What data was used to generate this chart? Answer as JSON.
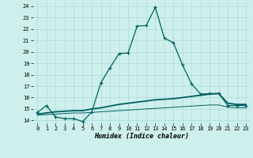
{
  "xlabel": "Humidex (Indice chaleur)",
  "background_color": "#cef0ec",
  "grid_color": "#aadadd",
  "line_color": "#006060",
  "xlim": [
    -0.5,
    23.5
  ],
  "ylim": [
    13.75,
    24.4
  ],
  "yticks": [
    14,
    15,
    16,
    17,
    18,
    19,
    20,
    21,
    22,
    23,
    24
  ],
  "xticks": [
    0,
    1,
    2,
    3,
    4,
    5,
    6,
    7,
    8,
    9,
    10,
    11,
    12,
    13,
    14,
    15,
    16,
    17,
    18,
    19,
    20,
    21,
    22,
    23
  ],
  "xtick_labels": [
    "0",
    "1",
    "2",
    "3",
    "4",
    "5",
    "6",
    "7",
    "8",
    "9",
    "10",
    "11",
    "12",
    "13",
    "14",
    "15",
    "16",
    "17",
    "18",
    "19",
    "20",
    "21",
    "22",
    "23"
  ],
  "series1_x": [
    0,
    1,
    2,
    3,
    4,
    5,
    6,
    7,
    8,
    9,
    10,
    11,
    12,
    13,
    14,
    15,
    16,
    17,
    18,
    19,
    20,
    21,
    22,
    23
  ],
  "series1_y": [
    14.7,
    15.3,
    14.3,
    14.15,
    14.15,
    13.9,
    14.75,
    17.3,
    18.6,
    19.85,
    19.9,
    22.25,
    22.3,
    23.9,
    21.2,
    20.8,
    18.85,
    17.2,
    16.3,
    16.35,
    16.35,
    15.3,
    15.3,
    15.3
  ],
  "series2_x": [
    0,
    1,
    2,
    3,
    4,
    5,
    6,
    7,
    8,
    9,
    10,
    11,
    12,
    13,
    14,
    15,
    16,
    17,
    18,
    19,
    20,
    21,
    22,
    23
  ],
  "series2_y": [
    14.55,
    14.65,
    14.75,
    14.8,
    14.85,
    14.85,
    15.0,
    15.1,
    15.25,
    15.4,
    15.5,
    15.6,
    15.7,
    15.8,
    15.85,
    15.9,
    16.0,
    16.1,
    16.2,
    16.3,
    16.35,
    15.5,
    15.4,
    15.4
  ],
  "series3_x": [
    0,
    1,
    2,
    3,
    4,
    5,
    6,
    7,
    8,
    9,
    10,
    11,
    12,
    13,
    14,
    15,
    16,
    17,
    18,
    19,
    20,
    21,
    22,
    23
  ],
  "series3_y": [
    14.45,
    14.5,
    14.55,
    14.6,
    14.65,
    14.65,
    14.7,
    14.75,
    14.8,
    14.85,
    14.9,
    14.95,
    15.0,
    15.05,
    15.1,
    15.15,
    15.2,
    15.25,
    15.3,
    15.35,
    15.35,
    15.15,
    15.1,
    15.1
  ]
}
